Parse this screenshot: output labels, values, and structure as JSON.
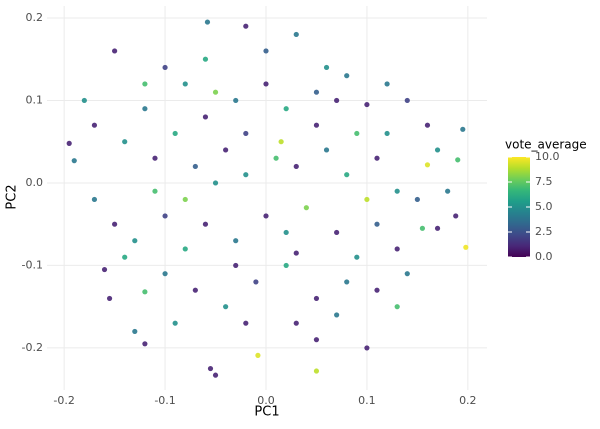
{
  "chart_data": {
    "type": "scatter",
    "x_label": "PC1",
    "y_label": "PC2",
    "legend_title": "vote_average",
    "xlim": [
      -0.217,
      0.219
    ],
    "ylim": [
      -0.251,
      0.2145
    ],
    "xticks": [
      -0.2,
      -0.1,
      {
        "value": 0,
        "label": "0.0"
      },
      0.1,
      0.2
    ],
    "yticks": [
      -0.2,
      -0.1,
      {
        "value": 0,
        "label": "0.0"
      },
      0.1,
      0.2
    ],
    "grid": true,
    "color_lim": [
      0,
      10
    ],
    "color_ticks": [
      {
        "value": 0,
        "label": "0.0"
      },
      2.5,
      {
        "value": 5,
        "label": "5.0"
      },
      7.5,
      {
        "value": 10,
        "label": "10.0"
      }
    ],
    "colormap": [
      "#440154",
      "#482878",
      "#3e4989",
      "#31688e",
      "#26828e",
      "#1f9e89",
      "#35b779",
      "#6ece58",
      "#b5de2b",
      "#fde725"
    ],
    "x": [
      -0.195,
      -0.19,
      -0.18,
      -0.058,
      -0.02,
      0.03,
      0.195,
      0.19,
      0.188,
      0.17,
      0.198,
      0.05,
      -0.008,
      -0.16,
      -0.155,
      -0.13,
      -0.12,
      -0.055,
      -0.05,
      0.1,
      0.05,
      0.03,
      0.13,
      0.155,
      0.16,
      -0.12,
      -0.12,
      -0.15,
      -0.1,
      -0.08,
      -0.06,
      -0.03,
      0.0,
      0.02,
      0.05,
      0.08,
      0.1,
      0.12,
      0.14,
      0.16,
      -0.14,
      -0.11,
      -0.09,
      -0.07,
      -0.04,
      -0.02,
      0.01,
      0.03,
      0.06,
      0.08,
      0.11,
      0.13,
      0.15,
      -0.17,
      -0.15,
      -0.13,
      -0.1,
      -0.08,
      -0.06,
      -0.03,
      0.0,
      0.02,
      0.04,
      0.07,
      0.09,
      0.11,
      0.13,
      -0.1,
      -0.07,
      -0.04,
      -0.01,
      0.02,
      0.05,
      0.08,
      0.11,
      -0.09,
      -0.02,
      0.07,
      -0.06,
      0.0,
      0.06,
      -0.17,
      -0.12,
      0.17,
      0.18,
      -0.05,
      0.09,
      -0.08,
      0.1,
      0.05,
      -0.02,
      -0.14,
      0.14,
      0.03,
      -0.05,
      0.07,
      -0.11,
      0.12,
      -0.03,
      0.015
    ],
    "values": [
      0.048,
      0.027,
      0.1,
      0.195,
      0.19,
      0.18,
      0.065,
      0.028,
      -0.04,
      -0.055,
      -0.078,
      -0.228,
      -0.209,
      -0.105,
      -0.14,
      -0.18,
      -0.195,
      -0.225,
      -0.233,
      -0.2,
      -0.19,
      -0.17,
      -0.15,
      -0.055,
      0.022,
      -0.132,
      0.12,
      0.16,
      0.14,
      0.12,
      0.08,
      0.1,
      0.12,
      0.09,
      0.11,
      0.13,
      0.095,
      0.06,
      0.1,
      0.07,
      0.05,
      0.03,
      0.06,
      0.02,
      0.04,
      0.01,
      0.03,
      0.02,
      0.04,
      0.01,
      0.03,
      -0.01,
      -0.02,
      -0.02,
      -0.05,
      -0.07,
      -0.04,
      -0.08,
      -0.05,
      -0.07,
      -0.04,
      -0.06,
      -0.03,
      -0.06,
      -0.09,
      -0.05,
      -0.08,
      -0.11,
      -0.13,
      -0.15,
      -0.12,
      -0.1,
      -0.14,
      -0.12,
      -0.13,
      -0.17,
      -0.17,
      -0.16,
      0.15,
      0.16,
      0.14,
      0.07,
      0.09,
      0.04,
      -0.01,
      0.11,
      0.06,
      -0.02,
      -0.02,
      0.07,
      0.06,
      -0.09,
      -0.11,
      -0.085,
      0.0,
      0.1,
      -0.01,
      0.12,
      -0.1,
      0.05
    ],
    "color_values": [
      1,
      4,
      5,
      4,
      1,
      4,
      4,
      7,
      1,
      1,
      9.8,
      9,
      9.5,
      1,
      1,
      4,
      1,
      1,
      1,
      1,
      1,
      1,
      7,
      7,
      9.5,
      7,
      7,
      1,
      2,
      5,
      1,
      4,
      1,
      6,
      3,
      4,
      1,
      5,
      2,
      1,
      5,
      1,
      6,
      3,
      1,
      5,
      7,
      1,
      4,
      6,
      1,
      5,
      3,
      4,
      1,
      5,
      2,
      6,
      1,
      4,
      1,
      5,
      8,
      1,
      5,
      3,
      1,
      4,
      1,
      5,
      2,
      6,
      1,
      4,
      1,
      5,
      1,
      4,
      6,
      3,
      5,
      1,
      4,
      5,
      4,
      8,
      7,
      8,
      9,
      1,
      2,
      6,
      4,
      1,
      5,
      1,
      7,
      4,
      1,
      9
    ]
  }
}
